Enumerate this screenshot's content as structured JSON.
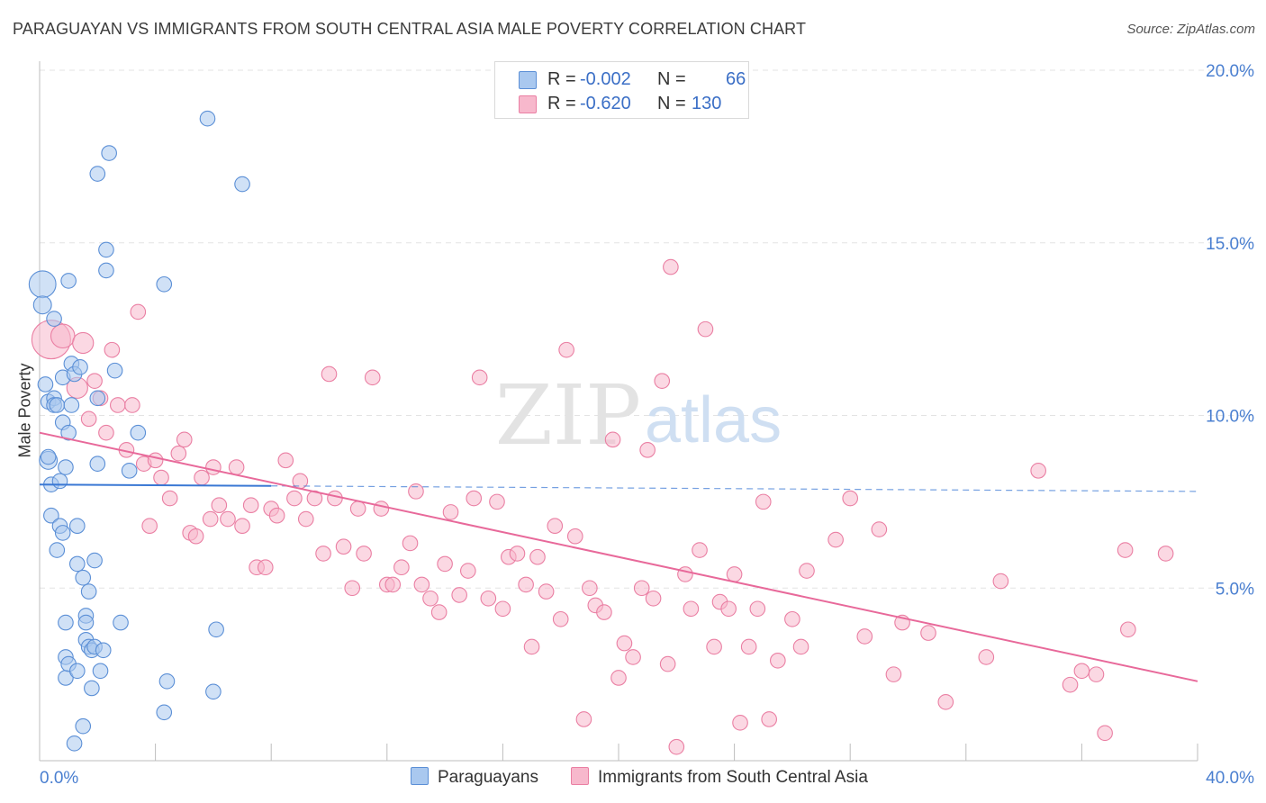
{
  "title": "PARAGUAYAN VS IMMIGRANTS FROM SOUTH CENTRAL ASIA MALE POVERTY CORRELATION CHART",
  "source": "Source: ZipAtlas.com",
  "watermark": {
    "part1": "ZIP",
    "part2": "atlas"
  },
  "legend": {
    "rows": [
      {
        "r_label": "R =",
        "r_value": "-0.002",
        "n_label": "N =",
        "n_value": "66"
      },
      {
        "r_label": "R =",
        "r_value": "-0.620",
        "n_label": "N =",
        "n_value": "130"
      }
    ]
  },
  "colors": {
    "series1_fill": "#a9c8ef",
    "series1_stroke": "#5b8fd6",
    "series1_line": "#3a78d4",
    "series2_fill": "#f7b8cc",
    "series2_stroke": "#ea7fa3",
    "series2_line": "#e8699a",
    "grid": "#e3e3e3",
    "axis_tick_label": "#4a7fd0"
  },
  "chart_data": {
    "type": "scatter",
    "title": "PARAGUAYAN VS IMMIGRANTS FROM SOUTH CENTRAL ASIA MALE POVERTY CORRELATION CHART",
    "xlabel": "",
    "ylabel": "Male Poverty",
    "xlim": [
      0,
      40
    ],
    "ylim": [
      0,
      20
    ],
    "x_tick_labels": [
      "0.0%",
      "40.0%"
    ],
    "y_ticks": [
      5,
      10,
      15,
      20
    ],
    "y_tick_labels": [
      "5.0%",
      "10.0%",
      "15.0%",
      "20.0%"
    ],
    "grid": true,
    "legend_position": "top-center",
    "series": [
      {
        "name": "Paraguayans",
        "r": -0.002,
        "n": 66,
        "trend": {
          "x0": 0,
          "y0": 8.0,
          "x1": 40,
          "y1": 7.8,
          "solid_until": 8
        },
        "points": [
          [
            0.1,
            13.8,
            18
          ],
          [
            0.1,
            13.2,
            12
          ],
          [
            0.2,
            10.9,
            10
          ],
          [
            0.3,
            10.4,
            10
          ],
          [
            0.3,
            8.7,
            12
          ],
          [
            0.4,
            8.0,
            10
          ],
          [
            0.3,
            8.8,
            10
          ],
          [
            0.4,
            7.1,
            10
          ],
          [
            0.5,
            10.5,
            10
          ],
          [
            0.5,
            12.8,
            10
          ],
          [
            0.5,
            10.3,
            10
          ],
          [
            0.6,
            10.3,
            10
          ],
          [
            0.6,
            6.1,
            10
          ],
          [
            0.7,
            6.8,
            10
          ],
          [
            0.7,
            8.1,
            10
          ],
          [
            0.8,
            11.1,
            10
          ],
          [
            0.8,
            9.8,
            10
          ],
          [
            0.8,
            6.6,
            10
          ],
          [
            0.9,
            8.5,
            10
          ],
          [
            0.9,
            4.0,
            10
          ],
          [
            0.9,
            3.0,
            10
          ],
          [
            0.9,
            2.4,
            10
          ],
          [
            1.0,
            13.9,
            10
          ],
          [
            1.0,
            2.8,
            10
          ],
          [
            1.0,
            9.5,
            10
          ],
          [
            1.1,
            10.3,
            10
          ],
          [
            1.1,
            11.5,
            10
          ],
          [
            1.2,
            11.2,
            10
          ],
          [
            1.2,
            0.5,
            10
          ],
          [
            1.3,
            5.7,
            10
          ],
          [
            1.3,
            6.8,
            10
          ],
          [
            1.3,
            2.6,
            10
          ],
          [
            1.4,
            11.4,
            10
          ],
          [
            1.5,
            5.3,
            10
          ],
          [
            1.5,
            1.0,
            10
          ],
          [
            1.6,
            4.2,
            10
          ],
          [
            1.6,
            4.0,
            10
          ],
          [
            1.6,
            3.5,
            10
          ],
          [
            1.7,
            3.3,
            10
          ],
          [
            1.7,
            4.9,
            10
          ],
          [
            1.8,
            3.2,
            10
          ],
          [
            1.8,
            2.1,
            10
          ],
          [
            1.9,
            5.8,
            10
          ],
          [
            1.9,
            3.3,
            10
          ],
          [
            2.0,
            17.0,
            10
          ],
          [
            2.0,
            8.6,
            10
          ],
          [
            2.0,
            10.5,
            10
          ],
          [
            2.1,
            2.6,
            10
          ],
          [
            2.2,
            3.2,
            10
          ],
          [
            2.3,
            14.8,
            10
          ],
          [
            2.3,
            14.2,
            10
          ],
          [
            2.4,
            17.6,
            10
          ],
          [
            2.6,
            11.3,
            10
          ],
          [
            2.8,
            4.0,
            10
          ],
          [
            3.1,
            8.4,
            10
          ],
          [
            3.4,
            9.5,
            10
          ],
          [
            4.3,
            13.8,
            10
          ],
          [
            4.3,
            1.4,
            10
          ],
          [
            4.4,
            2.3,
            10
          ],
          [
            5.8,
            18.6,
            10
          ],
          [
            6.0,
            2.0,
            10
          ],
          [
            6.1,
            3.8,
            10
          ],
          [
            7.0,
            16.7,
            10
          ]
        ]
      },
      {
        "name": "Immigrants from South Central Asia",
        "r": -0.62,
        "n": 130,
        "trend": {
          "x0": 0,
          "y0": 9.5,
          "x1": 40,
          "y1": 2.3,
          "solid_until": 40
        },
        "points": [
          [
            0.4,
            12.2,
            26
          ],
          [
            0.8,
            12.3,
            16
          ],
          [
            1.3,
            10.8,
            14
          ],
          [
            1.5,
            12.1,
            14
          ],
          [
            1.7,
            9.9,
            10
          ],
          [
            1.9,
            11.0,
            10
          ],
          [
            2.1,
            10.5,
            10
          ],
          [
            2.3,
            9.5,
            10
          ],
          [
            2.5,
            11.9,
            10
          ],
          [
            2.7,
            10.3,
            10
          ],
          [
            3.0,
            9.0,
            10
          ],
          [
            3.2,
            10.3,
            10
          ],
          [
            3.4,
            13.0,
            10
          ],
          [
            3.6,
            8.6,
            10
          ],
          [
            3.8,
            6.8,
            10
          ],
          [
            4.0,
            8.7,
            10
          ],
          [
            4.2,
            8.2,
            10
          ],
          [
            4.5,
            7.6,
            10
          ],
          [
            4.8,
            8.9,
            10
          ],
          [
            5.0,
            9.3,
            10
          ],
          [
            5.2,
            6.6,
            10
          ],
          [
            5.4,
            6.5,
            10
          ],
          [
            5.6,
            8.2,
            10
          ],
          [
            5.9,
            7.0,
            10
          ],
          [
            6.0,
            8.5,
            10
          ],
          [
            6.2,
            7.4,
            10
          ],
          [
            6.5,
            7.0,
            10
          ],
          [
            6.8,
            8.5,
            10
          ],
          [
            7.0,
            6.8,
            10
          ],
          [
            7.3,
            7.4,
            10
          ],
          [
            7.5,
            5.6,
            10
          ],
          [
            7.8,
            5.6,
            10
          ],
          [
            8.0,
            7.3,
            10
          ],
          [
            8.2,
            7.1,
            10
          ],
          [
            8.5,
            8.7,
            10
          ],
          [
            8.8,
            7.6,
            10
          ],
          [
            9.0,
            8.1,
            10
          ],
          [
            9.2,
            7.0,
            10
          ],
          [
            9.5,
            7.6,
            10
          ],
          [
            9.8,
            6.0,
            10
          ],
          [
            10.0,
            11.2,
            10
          ],
          [
            10.2,
            7.6,
            10
          ],
          [
            10.5,
            6.2,
            10
          ],
          [
            10.8,
            5.0,
            10
          ],
          [
            11.0,
            7.3,
            10
          ],
          [
            11.2,
            6.0,
            10
          ],
          [
            11.5,
            11.1,
            10
          ],
          [
            11.8,
            7.3,
            10
          ],
          [
            12.0,
            5.1,
            10
          ],
          [
            12.2,
            5.1,
            10
          ],
          [
            12.5,
            5.6,
            10
          ],
          [
            12.8,
            6.3,
            10
          ],
          [
            13.0,
            7.8,
            10
          ],
          [
            13.2,
            5.1,
            10
          ],
          [
            13.5,
            4.7,
            10
          ],
          [
            13.8,
            4.3,
            10
          ],
          [
            14.0,
            5.7,
            10
          ],
          [
            14.2,
            7.2,
            10
          ],
          [
            14.5,
            4.8,
            10
          ],
          [
            14.8,
            5.5,
            10
          ],
          [
            15.0,
            7.6,
            10
          ],
          [
            15.2,
            11.1,
            10
          ],
          [
            15.5,
            4.7,
            10
          ],
          [
            15.8,
            7.5,
            10
          ],
          [
            16.0,
            4.4,
            10
          ],
          [
            16.2,
            5.9,
            10
          ],
          [
            16.5,
            6.0,
            10
          ],
          [
            16.8,
            5.1,
            10
          ],
          [
            17.0,
            3.3,
            10
          ],
          [
            17.2,
            5.9,
            10
          ],
          [
            17.5,
            4.9,
            10
          ],
          [
            17.8,
            6.8,
            10
          ],
          [
            18.0,
            4.1,
            10
          ],
          [
            18.2,
            11.9,
            10
          ],
          [
            18.5,
            6.5,
            10
          ],
          [
            18.8,
            1.2,
            10
          ],
          [
            19.0,
            5.0,
            10
          ],
          [
            19.2,
            4.5,
            10
          ],
          [
            19.5,
            4.3,
            10
          ],
          [
            19.8,
            9.3,
            10
          ],
          [
            20.0,
            2.4,
            10
          ],
          [
            20.2,
            3.4,
            10
          ],
          [
            20.5,
            3.0,
            10
          ],
          [
            20.8,
            5.0,
            10
          ],
          [
            21.0,
            9.0,
            10
          ],
          [
            21.2,
            4.7,
            10
          ],
          [
            21.5,
            11.0,
            10
          ],
          [
            21.7,
            2.8,
            10
          ],
          [
            21.8,
            14.3,
            10
          ],
          [
            22.0,
            0.4,
            10
          ],
          [
            22.3,
            5.4,
            10
          ],
          [
            22.5,
            4.4,
            10
          ],
          [
            22.8,
            6.1,
            10
          ],
          [
            23.0,
            12.5,
            10
          ],
          [
            23.3,
            3.3,
            10
          ],
          [
            23.5,
            4.6,
            10
          ],
          [
            23.8,
            4.4,
            10
          ],
          [
            24.0,
            5.4,
            10
          ],
          [
            24.2,
            1.1,
            10
          ],
          [
            24.5,
            3.3,
            10
          ],
          [
            24.8,
            4.4,
            10
          ],
          [
            25.0,
            7.5,
            10
          ],
          [
            25.2,
            1.2,
            10
          ],
          [
            25.5,
            2.9,
            10
          ],
          [
            26.0,
            4.1,
            10
          ],
          [
            26.3,
            3.3,
            10
          ],
          [
            26.5,
            5.5,
            10
          ],
          [
            27.5,
            6.4,
            10
          ],
          [
            28.0,
            7.6,
            10
          ],
          [
            28.5,
            3.6,
            10
          ],
          [
            29.0,
            6.7,
            10
          ],
          [
            29.5,
            2.5,
            10
          ],
          [
            29.8,
            4.0,
            10
          ],
          [
            30.7,
            3.7,
            10
          ],
          [
            31.3,
            1.7,
            10
          ],
          [
            32.7,
            3.0,
            10
          ],
          [
            33.2,
            5.2,
            10
          ],
          [
            34.5,
            8.4,
            10
          ],
          [
            35.6,
            2.2,
            10
          ],
          [
            36.0,
            2.6,
            10
          ],
          [
            36.5,
            2.5,
            10
          ],
          [
            36.8,
            0.8,
            10
          ],
          [
            37.5,
            6.1,
            10
          ],
          [
            37.6,
            3.8,
            10
          ],
          [
            38.9,
            6.0,
            10
          ]
        ]
      }
    ]
  },
  "bottom_legend": [
    "Paraguayans",
    "Immigrants from South Central Asia"
  ]
}
